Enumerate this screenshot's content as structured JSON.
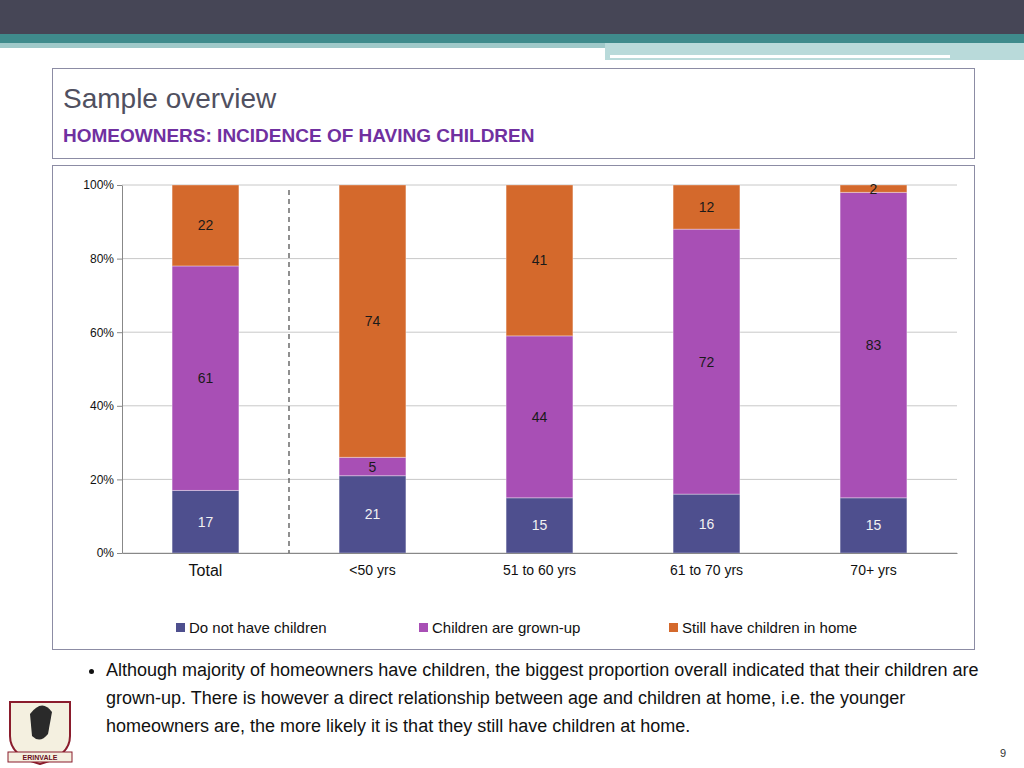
{
  "chart_data": {
    "type": "bar",
    "title": "Sample overview",
    "subtitle": "HOMEOWNERS: INCIDENCE OF HAVING CHILDREN",
    "annotations": [
      "Although majority of homeowners have children, the biggest proportion overall indicated that their children are grown-up. There is however a direct relationship between age and children at home, i.e. the younger homeowners are, the more likely it is that they still have children at home."
    ],
    "categories": [
      "Total",
      "<50 yrs",
      "51 to 60 yrs",
      "61 to 70 yrs",
      "70+ yrs"
    ],
    "series": [
      {
        "name": "Do not have children",
        "color": "#4e4f8e",
        "values": [
          17,
          21,
          15,
          16,
          15
        ]
      },
      {
        "name": "Children are grown-up",
        "color": "#a84fb5",
        "values": [
          61,
          5,
          44,
          72,
          83
        ]
      },
      {
        "name": "Still have children in home",
        "color": "#d4692c",
        "values": [
          22,
          74,
          41,
          12,
          2
        ]
      }
    ],
    "ylim": [
      0,
      100
    ],
    "yticks": [
      {
        "value": 0,
        "label": "0%"
      },
      {
        "value": 20,
        "label": "20%"
      },
      {
        "value": 40,
        "label": "40%"
      },
      {
        "value": 60,
        "label": "60%"
      },
      {
        "value": 80,
        "label": "80%"
      },
      {
        "value": 100,
        "label": "100%"
      }
    ],
    "stacked": true,
    "data_labels": true,
    "grid": true,
    "legend": "bottom"
  },
  "slide": {
    "page_number": 9,
    "logo_text": "ERINVALE"
  }
}
